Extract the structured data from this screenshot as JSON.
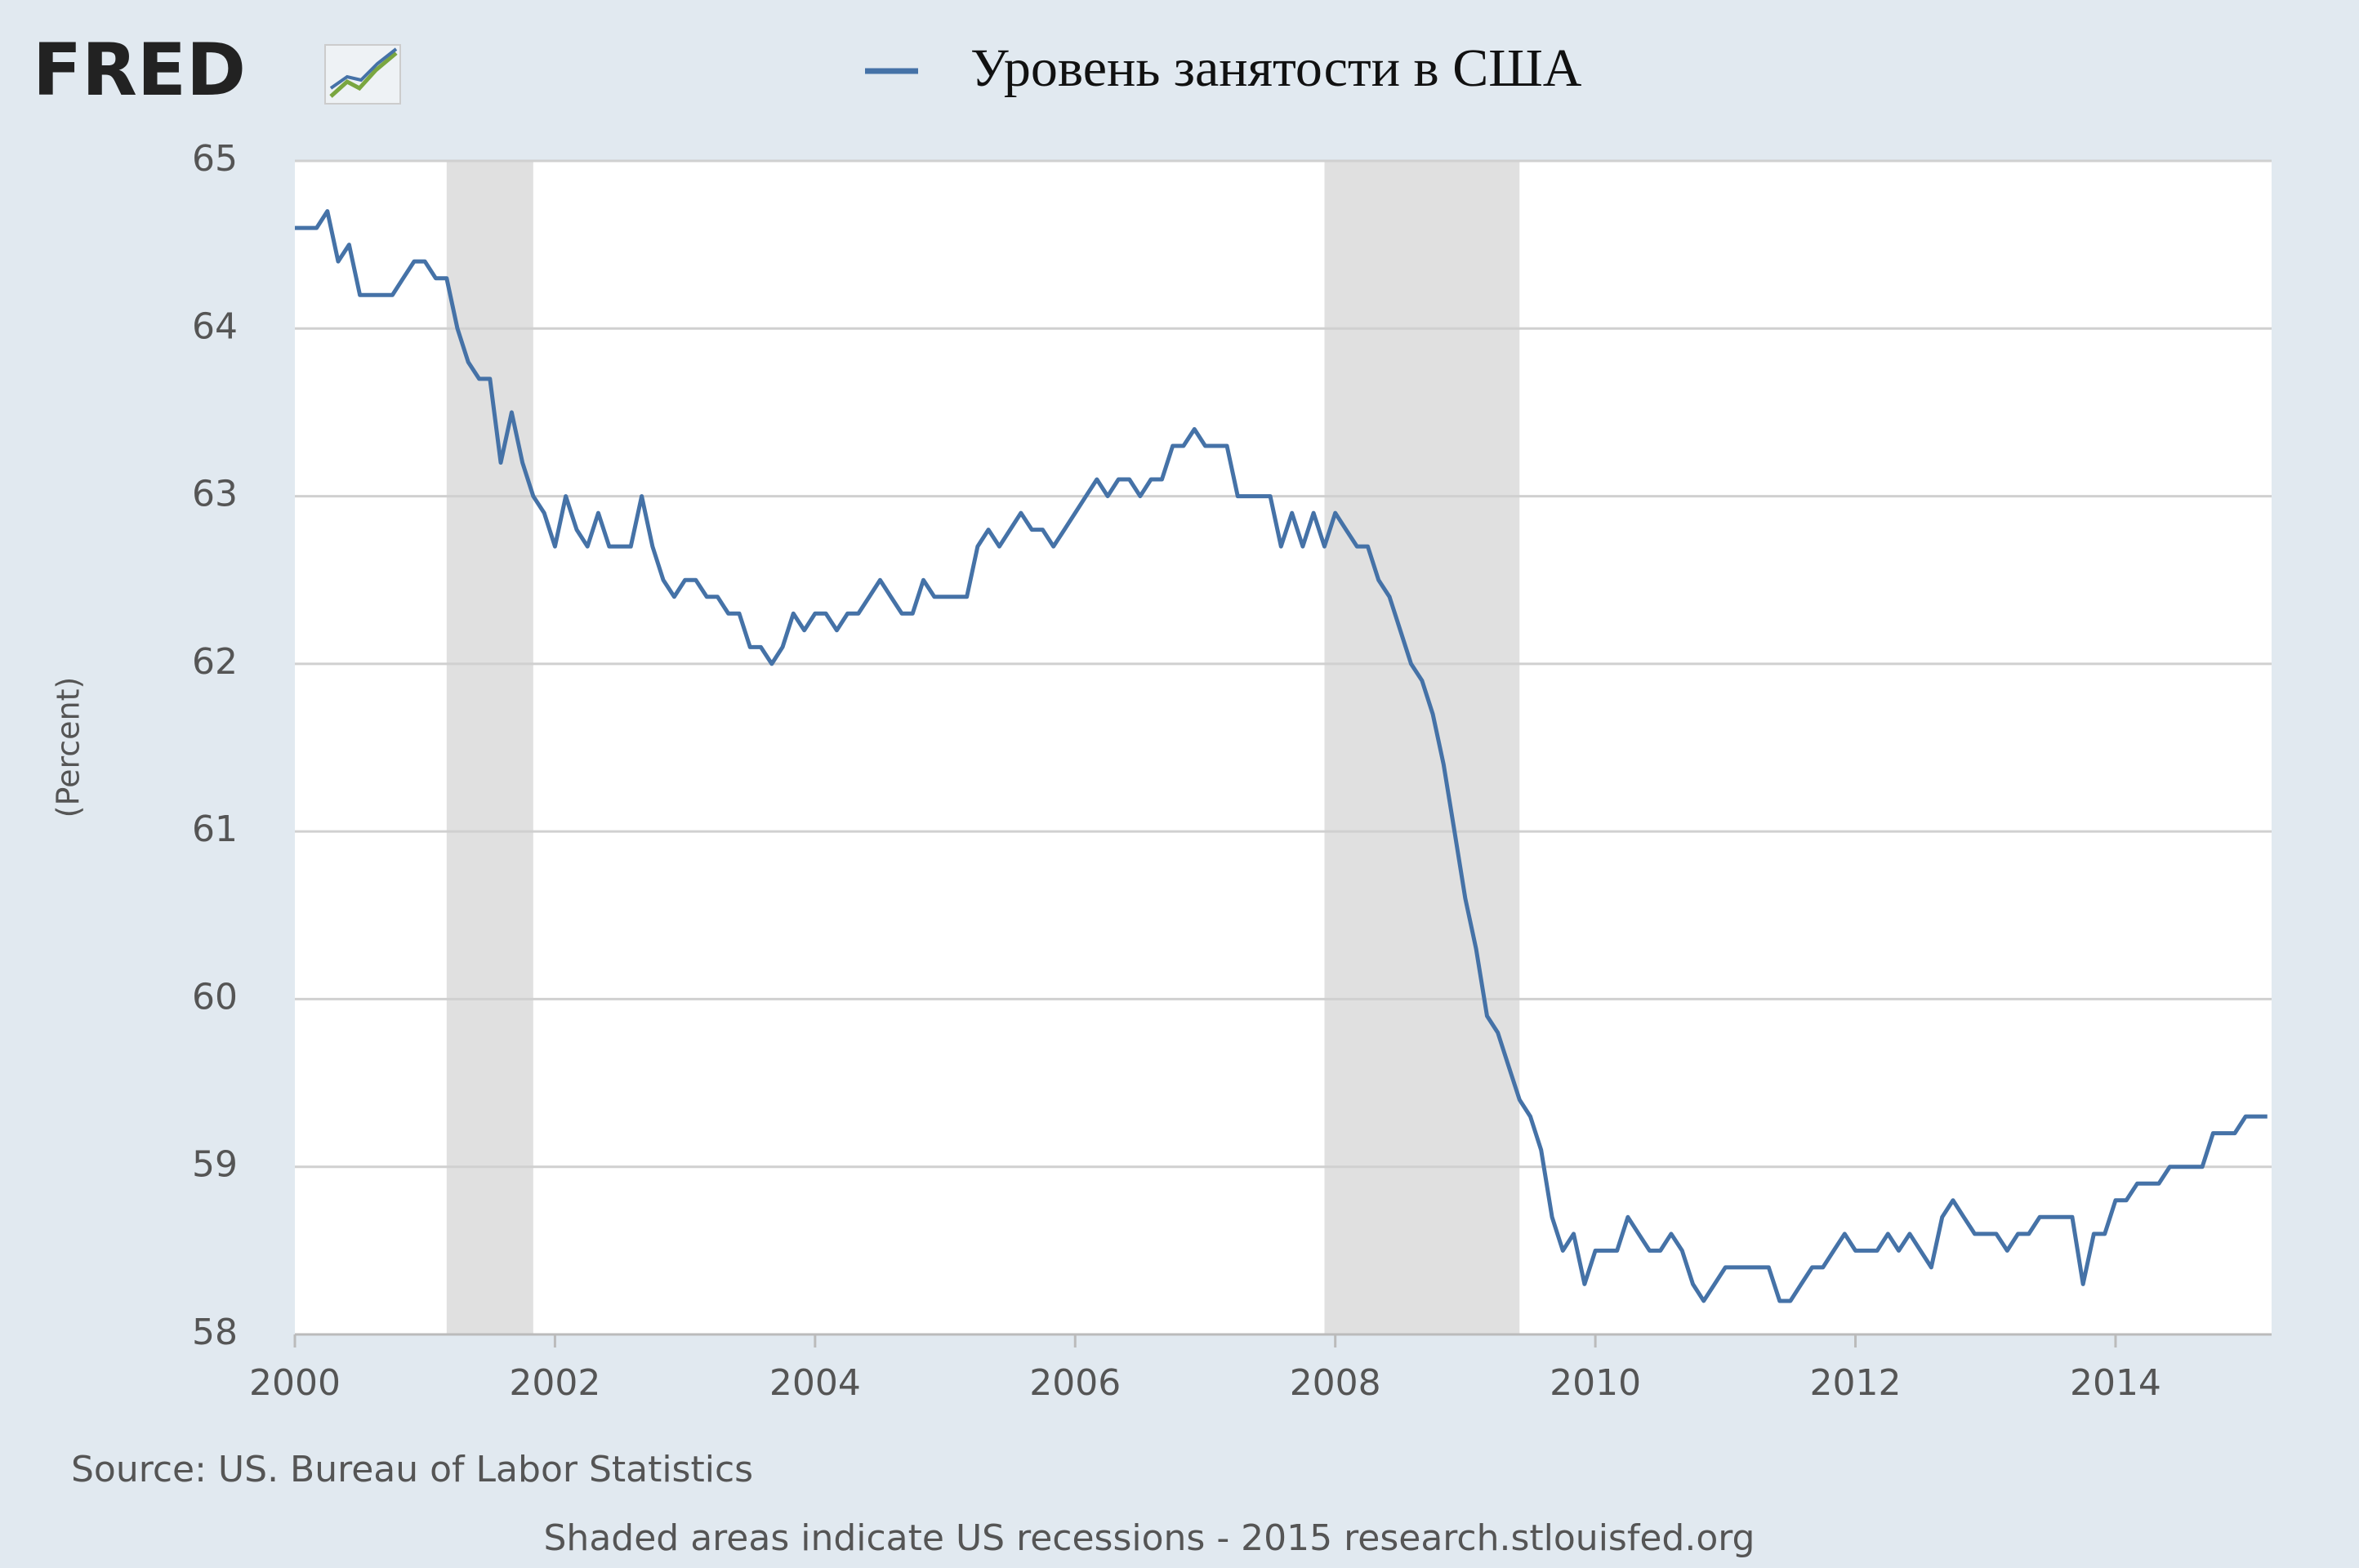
{
  "logo": "FRED",
  "chart_data": {
    "type": "line",
    "series": [
      {
        "name": "Уровень занятости в США",
        "color": "#4572a7",
        "values": [
          64.6,
          64.6,
          64.6,
          64.7,
          64.4,
          64.5,
          64.2,
          64.2,
          64.2,
          64.2,
          64.3,
          64.4,
          64.4,
          64.3,
          64.3,
          64.0,
          63.8,
          63.7,
          63.7,
          63.2,
          63.5,
          63.2,
          63.0,
          62.9,
          62.7,
          63.0,
          62.8,
          62.7,
          62.9,
          62.7,
          62.7,
          62.7,
          63.0,
          62.7,
          62.5,
          62.4,
          62.5,
          62.5,
          62.4,
          62.4,
          62.3,
          62.3,
          62.1,
          62.1,
          62.0,
          62.1,
          62.3,
          62.2,
          62.3,
          62.3,
          62.2,
          62.3,
          62.3,
          62.4,
          62.5,
          62.4,
          62.3,
          62.3,
          62.5,
          62.4,
          62.4,
          62.4,
          62.4,
          62.7,
          62.8,
          62.7,
          62.8,
          62.9,
          62.8,
          62.8,
          62.7,
          62.8,
          62.9,
          63.0,
          63.1,
          63.0,
          63.1,
          63.1,
          63.0,
          63.1,
          63.1,
          63.3,
          63.3,
          63.4,
          63.3,
          63.3,
          63.3,
          63.0,
          63.0,
          63.0,
          63.0,
          62.7,
          62.9,
          62.7,
          62.9,
          62.7,
          62.9,
          62.8,
          62.7,
          62.7,
          62.5,
          62.4,
          62.2,
          62.0,
          61.9,
          61.7,
          61.4,
          61.0,
          60.6,
          60.3,
          59.9,
          59.8,
          59.6,
          59.4,
          59.3,
          59.1,
          58.7,
          58.5,
          58.6,
          58.3,
          58.5,
          58.5,
          58.5,
          58.7,
          58.6,
          58.5,
          58.5,
          58.6,
          58.5,
          58.3,
          58.2,
          58.3,
          58.4,
          58.4,
          58.4,
          58.4,
          58.4,
          58.2,
          58.2,
          58.3,
          58.4,
          58.4,
          58.5,
          58.6,
          58.5,
          58.5,
          58.5,
          58.6,
          58.5,
          58.6,
          58.5,
          58.4,
          58.7,
          58.8,
          58.7,
          58.6,
          58.6,
          58.6,
          58.5,
          58.6,
          58.6,
          58.7,
          58.7,
          58.7,
          58.7,
          58.3,
          58.6,
          58.6,
          58.8,
          58.8,
          58.9,
          58.9,
          58.9,
          59.0,
          59.0,
          59.0,
          59.0,
          59.2,
          59.2,
          59.2,
          59.3,
          59.3,
          59.3
        ]
      }
    ],
    "x": [
      2000,
      2000.083,
      2000.167,
      2000.25,
      2000.333,
      2000.417,
      2000.5,
      2000.583,
      2000.667,
      2000.75,
      2000.833,
      2000.917,
      2001,
      2001.083,
      2001.167,
      2001.25,
      2001.333,
      2001.417,
      2001.5,
      2001.583,
      2001.667,
      2001.75,
      2001.833,
      2001.917,
      2002,
      2002.083,
      2002.167,
      2002.25,
      2002.333,
      2002.417,
      2002.5,
      2002.583,
      2002.667,
      2002.75,
      2002.833,
      2002.917,
      2003,
      2003.083,
      2003.167,
      2003.25,
      2003.333,
      2003.417,
      2003.5,
      2003.583,
      2003.667,
      2003.75,
      2003.833,
      2003.917,
      2004,
      2004.083,
      2004.167,
      2004.25,
      2004.333,
      2004.417,
      2004.5,
      2004.583,
      2004.667,
      2004.75,
      2004.833,
      2004.917,
      2005,
      2005.083,
      2005.167,
      2005.25,
      2005.333,
      2005.417,
      2005.5,
      2005.583,
      2005.667,
      2005.75,
      2005.833,
      2005.917,
      2006,
      2006.083,
      2006.167,
      2006.25,
      2006.333,
      2006.417,
      2006.5,
      2006.583,
      2006.667,
      2006.75,
      2006.833,
      2006.917,
      2007,
      2007.083,
      2007.167,
      2007.25,
      2007.333,
      2007.417,
      2007.5,
      2007.583,
      2007.667,
      2007.75,
      2007.833,
      2007.917,
      2008,
      2008.083,
      2008.167,
      2008.25,
      2008.333,
      2008.417,
      2008.5,
      2008.583,
      2008.667,
      2008.75,
      2008.833,
      2008.917,
      2009,
      2009.083,
      2009.167,
      2009.25,
      2009.333,
      2009.417,
      2009.5,
      2009.583,
      2009.667,
      2009.75,
      2009.833,
      2009.917,
      2010,
      2010.083,
      2010.167,
      2010.25,
      2010.333,
      2010.417,
      2010.5,
      2010.583,
      2010.667,
      2010.75,
      2010.833,
      2010.917,
      2011,
      2011.083,
      2011.167,
      2011.25,
      2011.333,
      2011.417,
      2011.5,
      2011.583,
      2011.667,
      2011.75,
      2011.833,
      2011.917,
      2012,
      2012.083,
      2012.167,
      2012.25,
      2012.333,
      2012.417,
      2012.5,
      2012.583,
      2012.667,
      2012.75,
      2012.833,
      2012.917,
      2013,
      2013.083,
      2013.167,
      2013.25,
      2013.333,
      2013.417,
      2013.5,
      2013.583,
      2013.667,
      2013.75,
      2013.833,
      2013.917,
      2014,
      2014.083,
      2014.167,
      2014.25,
      2014.333,
      2014.417,
      2014.5,
      2014.583,
      2014.667,
      2014.75,
      2014.833,
      2014.917,
      2015,
      2015.083,
      2015.167
    ],
    "recessions": [
      [
        2001.167,
        2001.833
      ],
      [
        2007.917,
        2009.417
      ]
    ],
    "recession_color": "#e0e0e0",
    "ylabel": "(Percent)",
    "xlim": [
      2000,
      2015.2
    ],
    "xticks": [
      2000,
      2002,
      2004,
      2006,
      2008,
      2010,
      2012,
      2014
    ],
    "ylim": [
      58,
      65
    ],
    "yticks": [
      58,
      59,
      60,
      61,
      62,
      63,
      64,
      65
    ],
    "grid": true,
    "source": "Source: US. Bureau of Labor Statistics",
    "note": "Shaded areas indicate US recessions - 2015 research.stlouisfed.org"
  }
}
